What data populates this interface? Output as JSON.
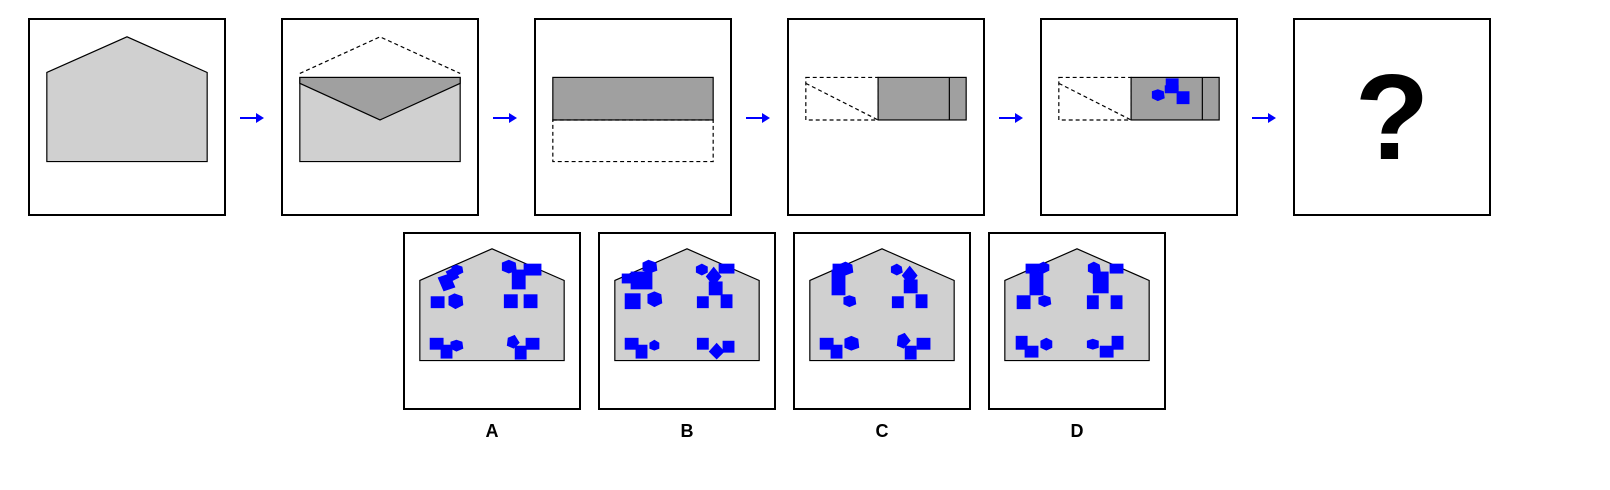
{
  "sequence": {
    "steps": [
      {
        "id": "step-1",
        "description": "flat-shape"
      },
      {
        "id": "step-2",
        "description": "top-flap-folded-down"
      },
      {
        "id": "step-3",
        "description": "bottom-folded-up"
      },
      {
        "id": "step-4",
        "description": "left-folded-right"
      },
      {
        "id": "step-5",
        "description": "punched-holes"
      }
    ],
    "question_mark": "?"
  },
  "options": [
    {
      "label": "A"
    },
    {
      "label": "B"
    },
    {
      "label": "C"
    },
    {
      "label": "D"
    }
  ],
  "colors": {
    "paper": "#d0d0d0",
    "folded_paper": "#a0a0a0",
    "hole": "#0000ff",
    "arrow": "#0000ff",
    "outline": "#000000"
  }
}
